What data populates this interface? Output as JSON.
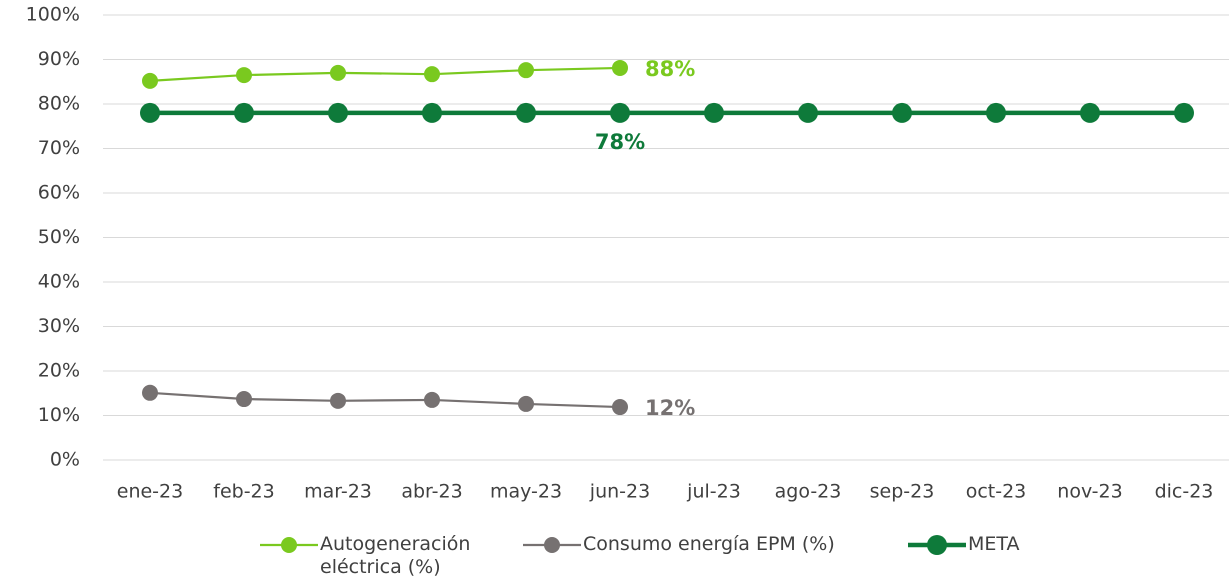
{
  "chart_data": {
    "type": "line",
    "categories": [
      "ene-23",
      "feb-23",
      "mar-23",
      "abr-23",
      "may-23",
      "jun-23",
      "jul-23",
      "ago-23",
      "sep-23",
      "oct-23",
      "nov-23",
      "dic-23"
    ],
    "series": [
      {
        "name": "Autogeneración eléctrica (%)",
        "color": "#7ac91f",
        "values": [
          85.2,
          86.5,
          87.0,
          86.7,
          87.6,
          88.1,
          null,
          null,
          null,
          null,
          null,
          null
        ],
        "value_labels": [
          null,
          null,
          null,
          null,
          null,
          "88%",
          null,
          null,
          null,
          null,
          null,
          null
        ]
      },
      {
        "name": "Consumo energía EPM (%)",
        "color": "#767171",
        "values": [
          15.1,
          13.7,
          13.3,
          13.5,
          12.6,
          11.9,
          null,
          null,
          null,
          null,
          null,
          null
        ],
        "value_labels": [
          null,
          null,
          null,
          null,
          null,
          "12%",
          null,
          null,
          null,
          null,
          null,
          null
        ]
      },
      {
        "name": "META",
        "color": "#0e7a3a",
        "values": [
          78,
          78,
          78,
          78,
          78,
          78,
          78,
          78,
          78,
          78,
          78,
          78
        ],
        "value_labels": [
          null,
          null,
          null,
          null,
          null,
          "78%",
          null,
          null,
          null,
          null,
          null,
          null
        ]
      }
    ],
    "ylim": [
      0,
      100
    ],
    "yticks": [
      {
        "value": 0,
        "label": "0%"
      },
      {
        "value": 10,
        "label": "10%"
      },
      {
        "value": 20,
        "label": "20%"
      },
      {
        "value": 30,
        "label": "30%"
      },
      {
        "value": 40,
        "label": "40%"
      },
      {
        "value": 50,
        "label": "50%"
      },
      {
        "value": 60,
        "label": "60%"
      },
      {
        "value": 70,
        "label": "70%"
      },
      {
        "value": 80,
        "label": "80%"
      },
      {
        "value": 90,
        "label": "90%"
      },
      {
        "value": 100,
        "label": "100%"
      }
    ],
    "grid": true,
    "legend": "bottom"
  }
}
